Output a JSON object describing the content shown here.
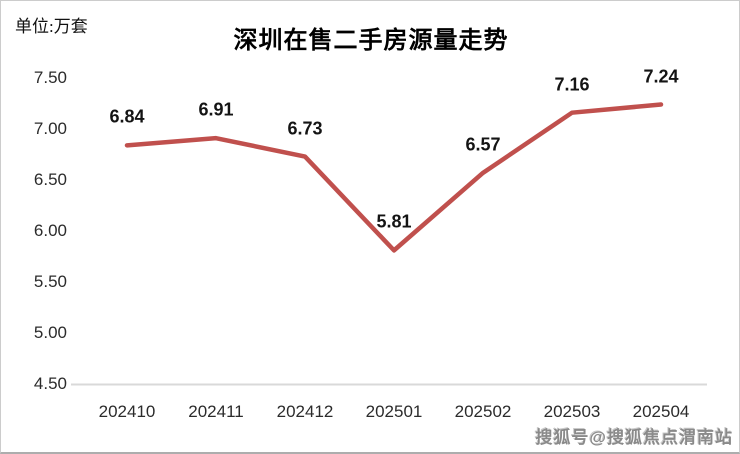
{
  "page": {
    "watermark": "搜狐号@搜狐焦点渭南站"
  },
  "chart_data": {
    "type": "line",
    "title": "深圳在售二手房源量走势",
    "unit_label": "单位:万套",
    "categories": [
      "202410",
      "202411",
      "202412",
      "202501",
      "202502",
      "202503",
      "202504"
    ],
    "values": [
      6.84,
      6.91,
      6.73,
      5.81,
      6.57,
      7.16,
      7.24
    ],
    "data_labels": [
      "6.84",
      "6.91",
      "6.73",
      "5.81",
      "6.57",
      "7.16",
      "7.24"
    ],
    "ylim": [
      4.5,
      7.5
    ],
    "ytick_step": 0.5,
    "yticks": [
      "7.50",
      "7.00",
      "6.50",
      "6.00",
      "5.50",
      "5.00",
      "4.50"
    ],
    "line_color": "#C0504D",
    "axis_line_color": "#d9d9d9",
    "grid": false,
    "legend": "none",
    "markers": false
  }
}
